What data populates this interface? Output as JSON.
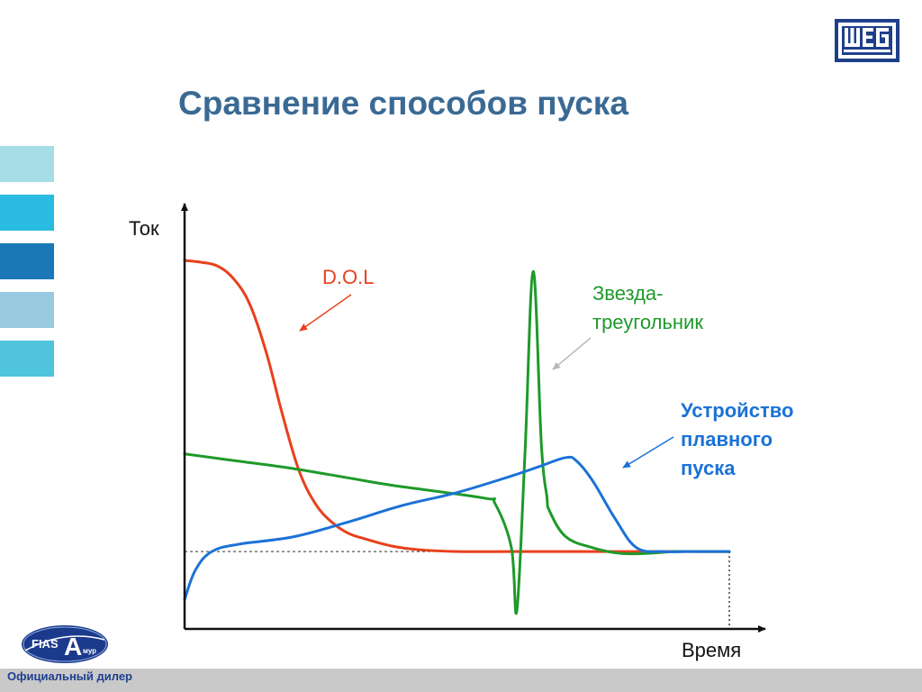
{
  "title": "Сравнение способов пуска",
  "logo": {
    "text": "WEG",
    "color": "#1e3f8a"
  },
  "side_bars": [
    {
      "color": "#a6dde6"
    },
    {
      "color": "#2abbe0"
    },
    {
      "color": "#1a78b8"
    },
    {
      "color": "#98c9e0"
    },
    {
      "color": "#4fc4dc"
    }
  ],
  "footer": {
    "dealer_text": "Официальный дилер",
    "badge_left": "FIAS",
    "badge_big": "A",
    "badge_small": "мур"
  },
  "chart_data": {
    "type": "line",
    "ylabel": "Ток",
    "xlabel": "Время",
    "xlim": [
      0,
      100
    ],
    "ylim": [
      0,
      100
    ],
    "axis_ticks": false,
    "grid": false,
    "reference_line": {
      "y": 21,
      "style": "dashed",
      "x_end": 100
    },
    "series": [
      {
        "name": "D.O.L",
        "color": "#e8401c",
        "label_style": "normal",
        "x": [
          0,
          3,
          6,
          9,
          12,
          15,
          18,
          21,
          24,
          27,
          30,
          33,
          38,
          43,
          50,
          60,
          70,
          80,
          90,
          100
        ],
        "y": [
          100,
          99.5,
          98.5,
          95,
          88,
          75,
          58,
          43,
          34,
          29,
          26,
          24.5,
          22.5,
          21.5,
          21,
          21,
          21,
          21,
          21,
          21
        ]
      },
      {
        "name": "Звезда-\nтреугольник",
        "color": "#1e9a2a",
        "label_style": "normal",
        "x": [
          0,
          10,
          20,
          30,
          38,
          55,
          57,
          60,
          61,
          62.5,
          64,
          65.5,
          66.5,
          67,
          70,
          75,
          80,
          85,
          90,
          95,
          100
        ],
        "y": [
          47.5,
          45.5,
          43.5,
          41,
          39,
          35.5,
          34,
          22,
          5,
          48,
          97,
          50,
          36,
          32,
          25,
          22,
          20.5,
          20.5,
          21,
          21,
          21
        ]
      },
      {
        "name": "Устройство\nплавного\nпуска",
        "color": "#1b72d6",
        "label_style": "bold",
        "x": [
          0,
          2,
          5,
          10,
          20,
          30,
          40,
          50,
          60,
          65,
          70,
          72,
          75,
          79,
          83,
          88,
          92,
          100
        ],
        "y": [
          8,
          16,
          21,
          23,
          25,
          29,
          33.5,
          37,
          41.5,
          44,
          46.5,
          45.5,
          40,
          30,
          22,
          21,
          21,
          21
        ]
      }
    ]
  }
}
